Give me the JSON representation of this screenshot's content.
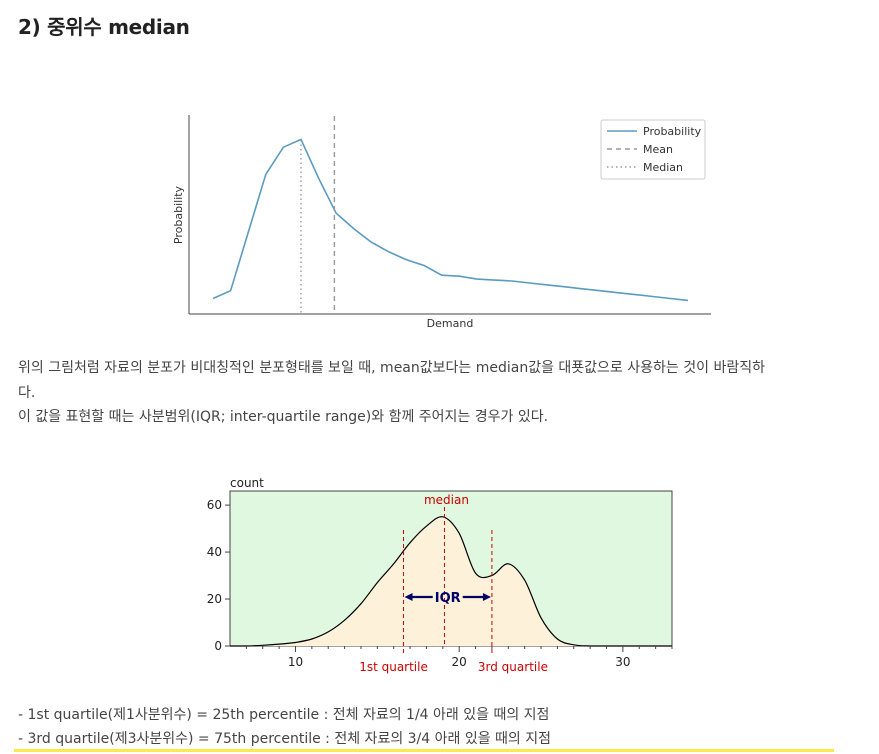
{
  "heading": "2) 중위수 median",
  "paragraph": {
    "line1": "위의 그림처럼 자료의 분포가 비대칭적인 분포형태를 보일 때, mean값보다는 median값을 대푯값으로 사용하는 것이 바람직하",
    "line2": "다.",
    "line3": "이 값을 표현할 때는 사분범위(IQR; inter-quartile range)와 함께 주어지는 경우가 있다."
  },
  "bullets": [
    "- 1st quartile(제1사분위수) = 25th percentile : 전체 자료의 1/4 아래 있을 때의 지점",
    "- 3rd quartile(제3사분위수) = 75th percentile : 전체 자료의 3/4 아래 있을 때의 지점"
  ],
  "colors": {
    "line1": "#5b9bbf",
    "ref": "#999999",
    "bg2": "#e0f7e0",
    "fill2": "#fdf2d9",
    "red": "#cc0000",
    "navy": "#000066",
    "highlight": "#ffe84d"
  },
  "chart_data": [
    {
      "type": "line",
      "title": "",
      "xlabel": "Demand",
      "ylabel": "Probability",
      "legend": {
        "position": "top-right",
        "entries": [
          "Probability",
          "Mean",
          "Median"
        ]
      },
      "series": [
        {
          "name": "Probability",
          "values": [
            0.08,
            0.12,
            0.42,
            0.72,
            0.86,
            0.9,
            0.7,
            0.52,
            0.44,
            0.37,
            0.32,
            0.28,
            0.25,
            0.2,
            0.195,
            0.18,
            0.175,
            0.17,
            0.16,
            0.15,
            0.14,
            0.13,
            0.12,
            0.11,
            0.1,
            0.09,
            0.08,
            0.07
          ]
        }
      ],
      "mean": 6.9,
      "median": 5.0,
      "ylim": [
        0,
        1
      ],
      "grid": false
    },
    {
      "type": "area",
      "ylabel": "count",
      "x_ticks": [
        10,
        20,
        30
      ],
      "y_ticks": [
        0,
        20,
        40,
        60
      ],
      "xlim": [
        6,
        33
      ],
      "ylim": [
        0,
        66
      ],
      "x": [
        6,
        7,
        8,
        9,
        10,
        11,
        12,
        13,
        14,
        15,
        16,
        17,
        18,
        19,
        20,
        21,
        22,
        23,
        24,
        25,
        26,
        27,
        28,
        29,
        30,
        31,
        32,
        33
      ],
      "values": [
        0,
        0,
        0.3,
        0.8,
        1.5,
        3,
        6,
        11,
        18,
        27,
        35,
        44,
        51,
        55,
        48,
        31,
        30,
        35,
        28,
        12,
        3,
        0.5,
        0,
        0,
        0,
        0,
        0,
        0
      ],
      "annotations": {
        "median": {
          "x": 19.1,
          "label": "median"
        },
        "q1": {
          "x": 16.6,
          "label": "1st quartile"
        },
        "q3": {
          "x": 22.0,
          "label": "3rd quartile"
        },
        "iqr_label": "IQR"
      }
    }
  ]
}
